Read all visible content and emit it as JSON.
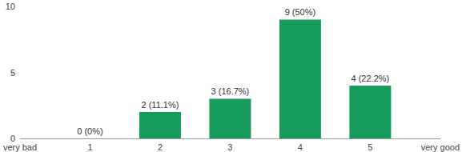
{
  "chart_data": {
    "type": "bar",
    "categories": [
      "very bad",
      "1",
      "2",
      "3",
      "4",
      "5",
      "very good"
    ],
    "values": [
      null,
      0,
      2,
      3,
      9,
      4,
      null
    ],
    "value_labels": [
      null,
      "0 (0%)",
      "2 (11.1%)",
      "3 (16.7%)",
      "9 (50%)",
      "4 (22.2%)",
      null
    ],
    "color": "#169b5c",
    "ylim": [
      0,
      10
    ],
    "yticks": [
      0,
      5,
      10
    ],
    "grid": false,
    "data_labels": true
  }
}
